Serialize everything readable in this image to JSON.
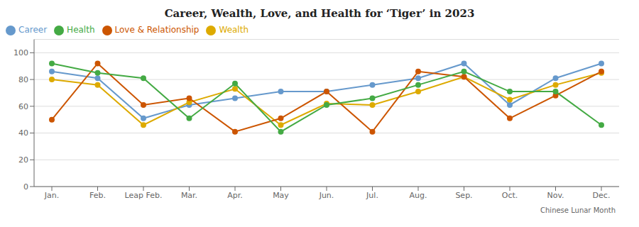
{
  "chart_data": {
    "type": "line",
    "title": "Career, Wealth, Love, and Health for ‘Tiger’ in 2023",
    "xlabel": "Chinese Lunar Month",
    "categories": [
      "Jan.",
      "Feb.",
      "Leap Feb.",
      "Mar.",
      "Apr.",
      "May",
      "Jun.",
      "Jul.",
      "Aug.",
      "Sep.",
      "Oct.",
      "Nov.",
      "Dec."
    ],
    "series": [
      {
        "name": "Career",
        "color": "#6699CC",
        "marker": "circle",
        "values": [
          86,
          81,
          51,
          61,
          66,
          71,
          71,
          76,
          81,
          92,
          61,
          81,
          92
        ]
      },
      {
        "name": "Wealth",
        "color": "#DDAA00",
        "marker": "circle",
        "values": [
          80,
          76,
          46,
          63,
          73,
          46,
          62,
          61,
          71,
          82,
          65,
          76,
          85
        ]
      },
      {
        "name": "Love & Relationship",
        "color": "#CC5500",
        "marker": "circle",
        "values": [
          50,
          92,
          61,
          66,
          41,
          51,
          71,
          41,
          86,
          82,
          51,
          68,
          86
        ]
      },
      {
        "name": "Health",
        "color": "#44AA44",
        "marker": "circle",
        "values": [
          92,
          85,
          81,
          51,
          77,
          41,
          61,
          66,
          76,
          86,
          71,
          71,
          46
        ]
      }
    ],
    "ylim": [
      0,
      110
    ],
    "yticks": [
      0,
      20,
      40,
      60,
      80,
      100
    ],
    "grid": true,
    "legend": "top-left"
  }
}
